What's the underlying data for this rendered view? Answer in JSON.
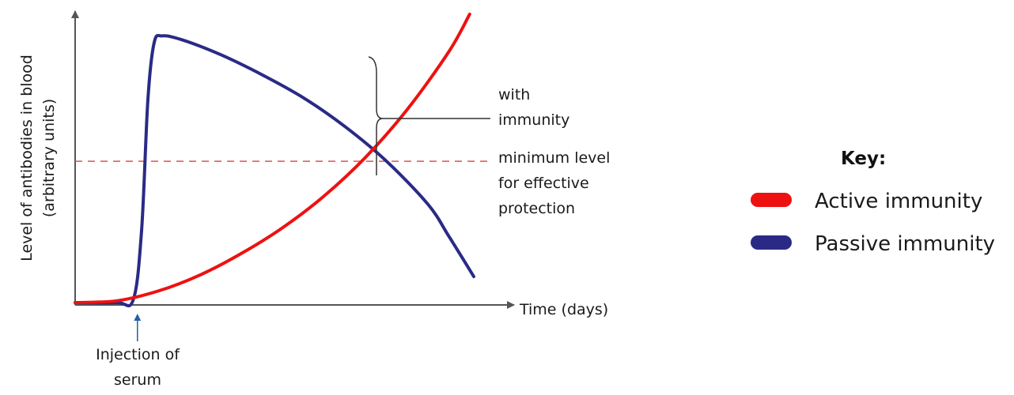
{
  "chart_data": {
    "type": "line",
    "title": "",
    "ylabel_line1": "Level of antibodies in blood",
    "ylabel_line2": "(arbitrary units)",
    "xlabel": "Time (days)",
    "x_range": [
      0,
      100
    ],
    "y_range": [
      0,
      100
    ],
    "threshold": {
      "value": 49,
      "label_lines": [
        "minimum level",
        "for effective",
        "protection"
      ],
      "color": "#e05050"
    },
    "bracket_label_lines": [
      "with",
      "immunity"
    ],
    "injection_label_lines": [
      "Injection of",
      "serum"
    ],
    "injection_x": 15,
    "series": [
      {
        "name": "Active immunity",
        "color": "#ee1111",
        "x": [
          0,
          10,
          20,
          30,
          40,
          50,
          60,
          70,
          80,
          90,
          95
        ],
        "y": [
          0,
          0.6,
          4,
          9.5,
          17,
          26,
          37,
          50.5,
          67,
          87,
          100
        ]
      },
      {
        "name": "Passive immunity",
        "color": "#2a2a86",
        "x": [
          0,
          10,
          14,
          16,
          17.5,
          19,
          21,
          26,
          35,
          45,
          55,
          65,
          75,
          85,
          90,
          96
        ],
        "y": [
          0,
          0,
          1,
          25,
          70,
          90,
          92.5,
          91,
          86,
          79,
          71,
          61,
          49,
          34,
          23,
          9
        ]
      }
    ],
    "legend": {
      "title": "Key:",
      "position": "right"
    }
  }
}
